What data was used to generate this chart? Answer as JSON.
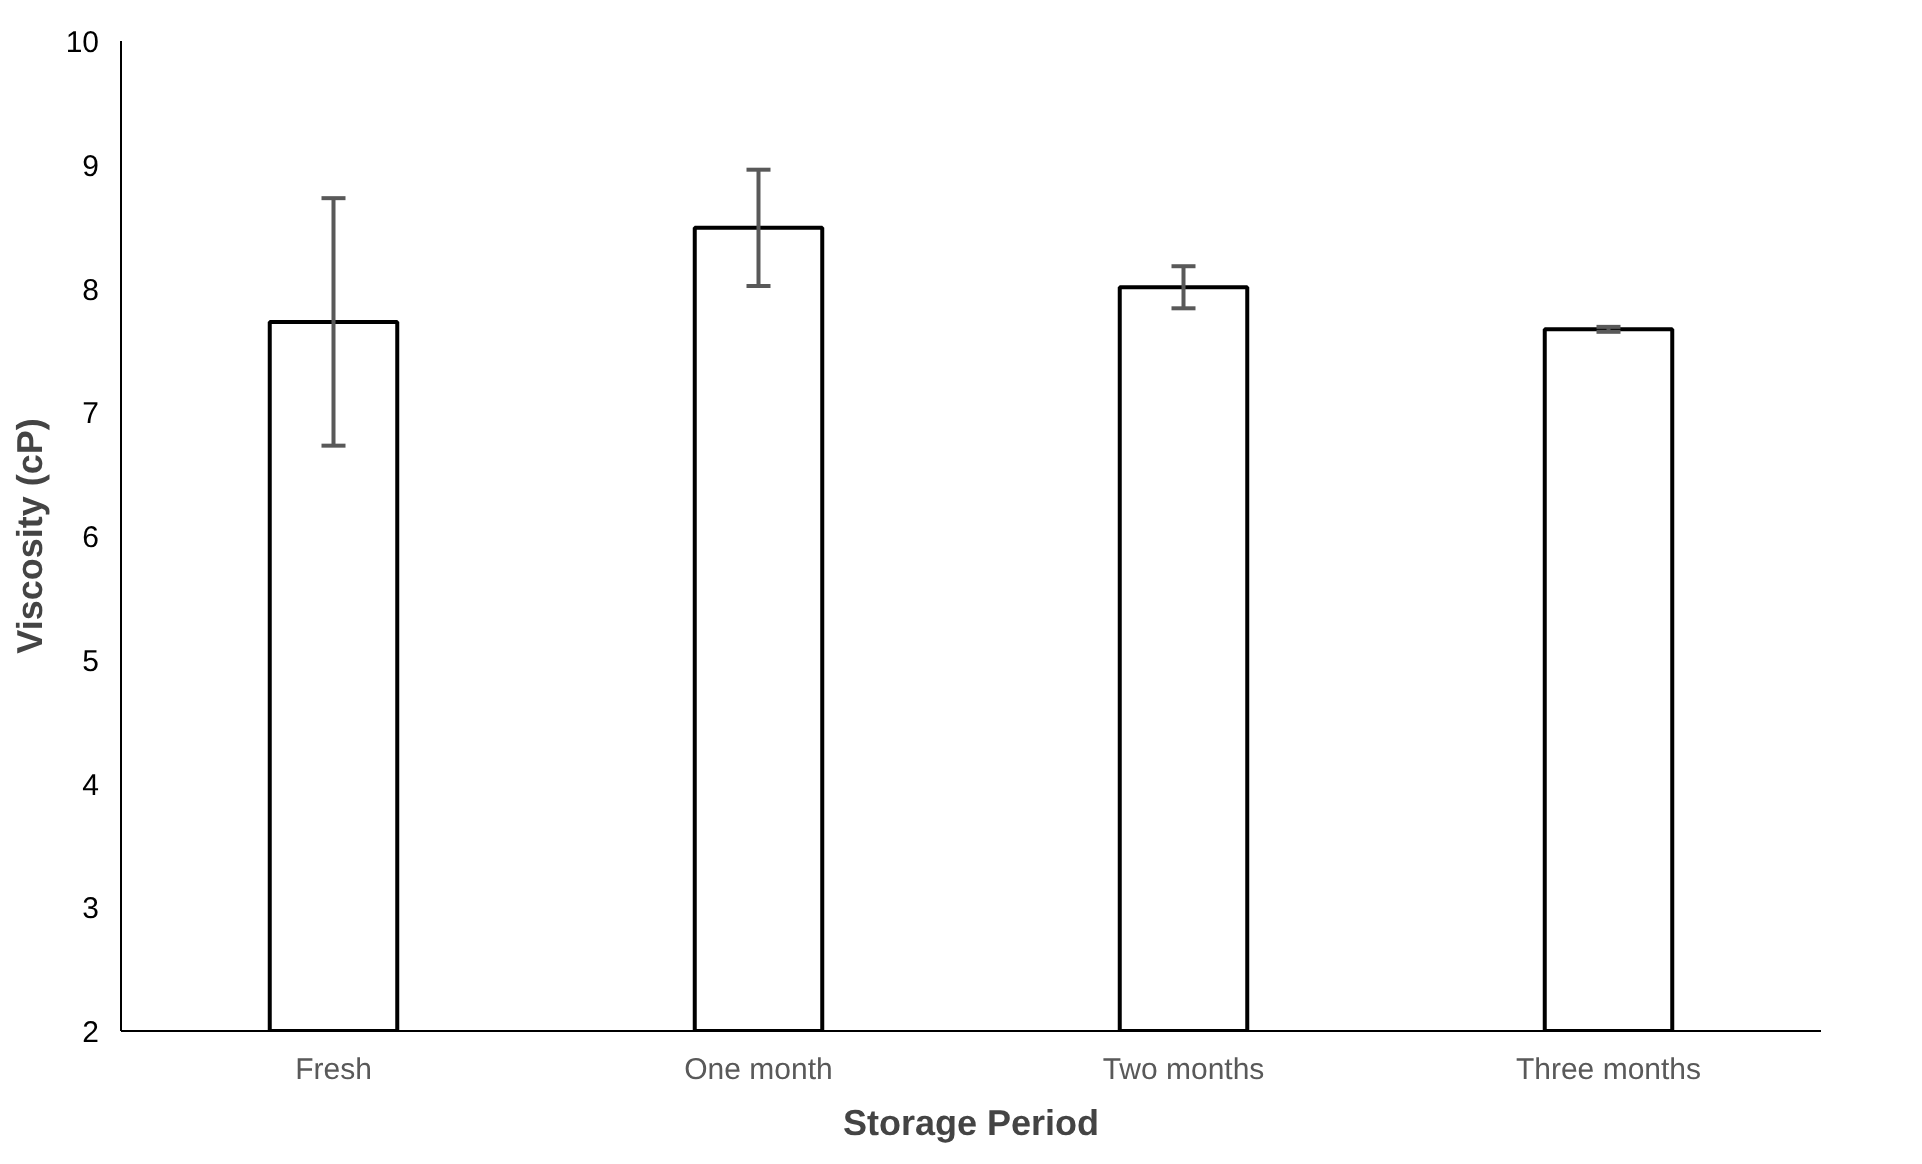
{
  "chart_data": {
    "type": "bar",
    "xlabel": "Storage Period",
    "ylabel": "Viscosity (cP)",
    "categories": [
      "Fresh",
      "One month",
      "Two months",
      "Three months"
    ],
    "values": [
      7.73,
      8.49,
      8.01,
      7.67
    ],
    "errors": [
      1.0,
      0.47,
      0.17,
      0.02
    ],
    "color": "#ffffff",
    "ylim": [
      2,
      10
    ],
    "yticks": [
      2,
      3,
      4,
      5,
      6,
      7,
      8,
      9,
      10
    ],
    "grid": false
  }
}
